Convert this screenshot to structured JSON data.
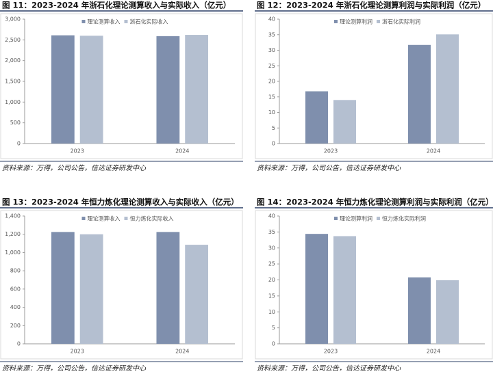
{
  "chart_data": [
    {
      "type": "bar",
      "title": "图 11：2023-2024 年浙石化理论测算收入与实际收入（亿元）",
      "note": "资料来源：万得，公司公告，信达证券研发中心",
      "categories": [
        "2023",
        "2024"
      ],
      "series": [
        {
          "name": "理论测算收入",
          "color": "#7f8fad",
          "values": [
            2610,
            2590
          ]
        },
        {
          "name": "浙石化实际收入",
          "color": "#b4bfd0",
          "values": [
            2600,
            2620
          ]
        }
      ],
      "ylim": [
        0,
        3000
      ],
      "yticks": [
        0,
        500,
        {
          "value": 1000,
          "label": "1,000"
        },
        {
          "value": 1500,
          "label": "1,500"
        },
        {
          "value": 2000,
          "label": "2,000"
        },
        {
          "value": 2500,
          "label": "2,500"
        },
        {
          "value": 3000,
          "label": "3,000"
        }
      ]
    },
    {
      "type": "bar",
      "title": "图 12：2023-2024 年浙石化理论测算利润与实际利润（亿元）",
      "note": "资料来源：万得，公司公告，信达证券研发中心",
      "categories": [
        "2023",
        "2024"
      ],
      "series": [
        {
          "name": "理论测算利润",
          "color": "#7f8fad",
          "values": [
            16.8,
            31.7
          ]
        },
        {
          "name": "浙石化实际利润",
          "color": "#b4bfd0",
          "values": [
            14,
            35.1
          ]
        }
      ],
      "ylim": [
        0,
        40
      ],
      "yticks": [
        0,
        5,
        10,
        15,
        20,
        25,
        30,
        35,
        40
      ]
    },
    {
      "type": "bar",
      "title": "图 13：2023-2024 年恒力炼化理论测算收入与实际收入（亿元）",
      "note": "资料来源：万得，公司公告，信达证券研发中心",
      "categories": [
        "2023",
        "2024"
      ],
      "series": [
        {
          "name": "理论测算收入",
          "color": "#7f8fad",
          "values": [
            1225,
            1225
          ]
        },
        {
          "name": "恒力炼化实际收入",
          "color": "#b4bfd0",
          "values": [
            1200,
            1085
          ]
        }
      ],
      "ylim": [
        0,
        1400
      ],
      "yticks": [
        0,
        200,
        400,
        600,
        800,
        {
          "value": 1000,
          "label": "1,000"
        },
        {
          "value": 1200,
          "label": "1,200"
        },
        {
          "value": 1400,
          "label": "1,400"
        }
      ]
    },
    {
      "type": "bar",
      "title": "图 14：2023-2024 年恒力炼化理论测算利润与实际利润（亿元）",
      "note": "资料来源：万得，公司公告，信达证券研发中心",
      "categories": [
        "2023",
        "2024"
      ],
      "series": [
        {
          "name": "理论测算利润",
          "color": "#7f8fad",
          "values": [
            34.4,
            20.8
          ]
        },
        {
          "name": "恒力炼化实际利润",
          "color": "#b4bfd0",
          "values": [
            33.7,
            19.9
          ]
        }
      ],
      "ylim": [
        0,
        40
      ],
      "yticks": [
        0,
        5,
        10,
        15,
        20,
        25,
        30,
        35,
        40
      ]
    }
  ]
}
